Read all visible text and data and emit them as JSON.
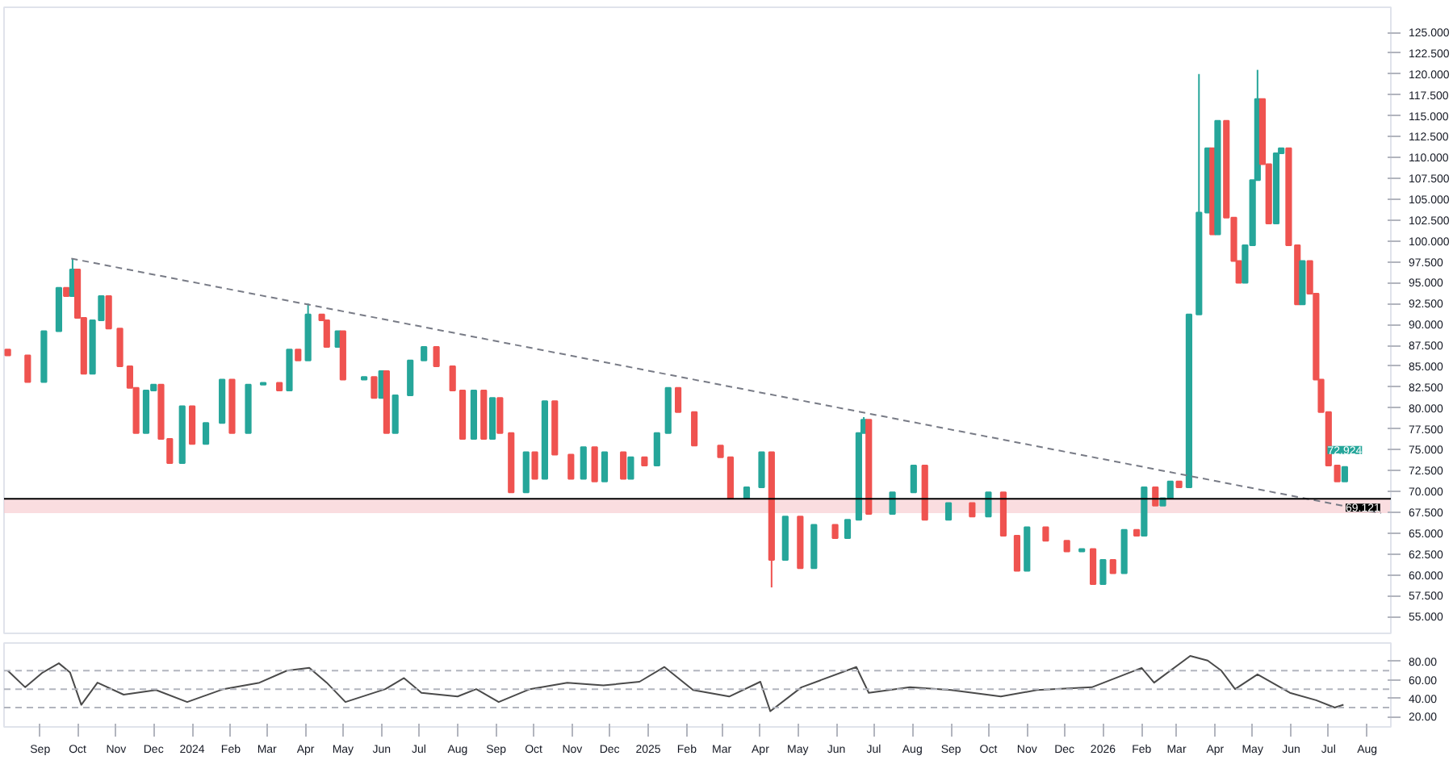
{
  "chart_data": [
    {
      "type": "candlestick",
      "xlim": [
        "2023-08-03",
        "2026-08-20"
      ],
      "ylim": [
        53,
        128
      ],
      "tick_labels": "y",
      "colors": [
        "#ef5350",
        "#ef5350",
        "#26a69a",
        "#26a69a",
        "#ef5350",
        "#26a69a",
        "#ef5350",
        "#ef5350",
        "#26a69a",
        "#26a69a",
        "#ef5350",
        "#ef5350",
        "#ef5350",
        "#ef5350",
        "#26a69a",
        "#26a69a",
        "#ef5350",
        "#ef5350",
        "#26a69a",
        "#ef5350",
        "#26a69a",
        "#26a69a",
        "#ef5350",
        "#26a69a",
        "#26a69a",
        "#ef5350",
        "#26a69a",
        "#ef5350",
        "#26a69a",
        "#ef5350",
        "#ef5350",
        "#26a69a",
        "#ef5350",
        "#26a69a",
        "#ef5350",
        "#26a69a",
        "#ef5350",
        "#26a69a",
        "#26a69a",
        "#26a69a",
        "#ef5350",
        "#ef5350",
        "#ef5350",
        "#26a69a",
        "#ef5350",
        "#26a69a",
        "#ef5350",
        "#ef5350",
        "#26a69a",
        "#ef5350",
        "#26a69a",
        "#ef5350",
        "#ef5350",
        "#26a69a",
        "#ef5350",
        "#26a69a",
        "#ef5350",
        "#26a69a",
        "#ef5350",
        "#26a69a",
        "#26a69a",
        "#ef5350",
        "#ef5350",
        "#ef5350",
        "#ef5350",
        "#26a69a",
        "#26a69a",
        "#ef5350",
        "#26a69a",
        "#ef5350",
        "#26a69a",
        "#ef5350",
        "#26a69a",
        "#26a69a",
        "#26a69a",
        "#ef5350",
        "#26a69a",
        "#26a69a",
        "#ef5350",
        "#26a69a",
        "#ef5350",
        "#26a69a",
        "#ef5350",
        "#ef5350",
        "#26a69a",
        "#ef5350",
        "#ef5350",
        "#26a69a",
        "#ef5350",
        "#26a69a",
        "#ef5350",
        "#26a69a",
        "#ef5350",
        "#26a69a",
        "#ef5350",
        "#26a69a",
        "#26a69a",
        "#ef5350",
        "#26a69a",
        "#26a69a",
        "#26a69a",
        "#ef5350",
        "#26a69a",
        "#ef5350",
        "#ef5350",
        "#ef5350",
        "#26a69a",
        "#26a69a",
        "#26a69a",
        "#ef5350",
        "#ef5350",
        "#26a69a",
        "#26a69a",
        "#ef5350",
        "#ef5350",
        "#26a69a",
        "#ef5350",
        "#ef5350",
        "#ef5350",
        "#ef5350",
        "#ef5350",
        "#26a69a"
      ],
      "yticks": [
        {
          "value": 55,
          "label": "55.000"
        },
        {
          "value": 57.5,
          "label": "57.500"
        },
        {
          "value": 60,
          "label": "60.000"
        },
        {
          "value": 62.5,
          "label": "62.500"
        },
        {
          "value": 65,
          "label": "65.000"
        },
        {
          "value": 67.5,
          "label": "67.500"
        },
        {
          "value": 70,
          "label": "70.000"
        },
        {
          "value": 72.5,
          "label": "72.500"
        },
        {
          "value": 75,
          "label": "75.000"
        },
        {
          "value": 77.5,
          "label": "77.500"
        },
        {
          "value": 80,
          "label": "80.000"
        },
        {
          "value": 82.5,
          "label": "82.500"
        },
        {
          "value": 85,
          "label": "85.000"
        },
        {
          "value": 87.5,
          "label": "87.500"
        },
        {
          "value": 90,
          "label": "90.000"
        },
        {
          "value": 92.5,
          "label": "92.500"
        },
        {
          "value": 95,
          "label": "95.000"
        },
        {
          "value": 97.5,
          "label": "97.500"
        },
        {
          "value": 100,
          "label": "100.000"
        },
        {
          "value": 102.5,
          "label": "102.500"
        },
        {
          "value": 105,
          "label": "105.000"
        },
        {
          "value": 107.5,
          "label": "107.500"
        },
        {
          "value": 110,
          "label": "110.000"
        },
        {
          "value": 112.5,
          "label": "112.500"
        },
        {
          "value": 115,
          "label": "115.000"
        },
        {
          "value": 117.5,
          "label": "117.500"
        },
        {
          "value": 120,
          "label": "120.000"
        },
        {
          "value": 122.5,
          "label": "122.500"
        },
        {
          "value": 125,
          "label": "125.000"
        }
      ],
      "x": [
        "2023-08-06",
        "2023-08-22",
        "2023-09-04",
        "2023-09-16",
        "2023-09-22",
        "2023-09-27",
        "2023-10-01",
        "2023-10-06",
        "2023-10-13",
        "2023-10-20",
        "2023-10-26",
        "2023-11-04",
        "2023-11-12",
        "2023-11-17",
        "2023-11-25",
        "2023-12-01",
        "2023-12-07",
        "2023-12-14",
        "2023-12-24",
        "2024-01-01",
        "2024-01-12",
        "2024-01-25",
        "2024-02-02",
        "2024-02-15",
        "2024-02-27",
        "2024-03-11",
        "2024-03-19",
        "2024-03-26",
        "2024-04-03",
        "2024-04-14",
        "2024-04-18",
        "2024-04-27",
        "2024-05-01",
        "2024-05-18",
        "2024-05-26",
        "2024-06-01",
        "2024-06-05",
        "2024-06-12",
        "2024-06-24",
        "2024-07-05",
        "2024-07-15",
        "2024-07-28",
        "2024-08-05",
        "2024-08-14",
        "2024-08-22",
        "2024-08-29",
        "2024-09-04",
        "2024-09-13",
        "2024-09-25",
        "2024-10-02",
        "2024-10-10",
        "2024-10-18",
        "2024-10-31",
        "2024-11-10",
        "2024-11-19",
        "2024-11-27",
        "2024-12-12",
        "2024-12-18",
        "2024-12-29",
        "2025-01-08",
        "2025-01-17",
        "2025-01-25",
        "2025-02-07",
        "2025-02-28",
        "2025-03-08",
        "2025-03-21",
        "2025-04-02",
        "2025-04-10",
        "2025-04-21",
        "2025-05-03",
        "2025-05-14",
        "2025-05-31",
        "2025-06-10",
        "2025-06-19",
        "2025-06-23",
        "2025-06-27",
        "2025-07-16",
        "2025-08-02",
        "2025-08-11",
        "2025-08-30",
        "2025-09-18",
        "2025-10-01",
        "2025-10-13",
        "2025-10-24",
        "2025-11-01",
        "2025-11-16",
        "2025-12-03",
        "2025-12-15",
        "2025-12-24",
        "2026-01-01",
        "2026-01-09",
        "2026-01-18",
        "2026-01-28",
        "2026-02-03",
        "2026-02-12",
        "2026-02-18",
        "2026-02-24",
        "2026-03-03",
        "2026-03-11",
        "2026-03-19",
        "2026-03-26",
        "2026-03-30",
        "2026-04-03",
        "2026-04-10",
        "2026-04-16",
        "2026-04-20",
        "2026-04-25",
        "2026-05-01",
        "2026-05-05",
        "2026-05-09",
        "2026-05-14",
        "2026-05-20",
        "2026-05-24",
        "2026-05-30",
        "2026-06-06",
        "2026-06-10",
        "2026-06-16",
        "2026-06-21",
        "2026-06-25",
        "2026-07-01",
        "2026-07-08",
        "2026-07-14"
      ],
      "ohlc": [
        [
          87.0,
          87.0,
          86.3,
          86.3
        ],
        [
          86.3,
          86.3,
          83.1,
          83.1
        ],
        [
          83.1,
          89.2,
          83.1,
          89.2
        ],
        [
          89.2,
          94.4,
          89.2,
          94.4
        ],
        [
          94.4,
          94.4,
          93.4,
          93.4
        ],
        [
          93.4,
          97.9,
          93.4,
          96.6
        ],
        [
          96.6,
          96.6,
          90.8,
          90.8
        ],
        [
          90.8,
          90.8,
          84.1,
          84.1
        ],
        [
          84.1,
          90.5,
          84.1,
          90.5
        ],
        [
          90.5,
          93.4,
          90.5,
          93.4
        ],
        [
          93.4,
          93.4,
          89.5,
          89.5
        ],
        [
          89.5,
          89.5,
          85.0,
          85.0
        ],
        [
          85.0,
          85.0,
          82.4,
          82.4
        ],
        [
          82.4,
          82.4,
          77.0,
          77.0
        ],
        [
          77.0,
          82.1,
          77.0,
          82.1
        ],
        [
          82.1,
          82.8,
          82.1,
          82.8
        ],
        [
          82.8,
          82.8,
          76.3,
          76.3
        ],
        [
          76.3,
          76.3,
          73.4,
          73.4
        ],
        [
          73.4,
          80.2,
          73.4,
          80.2
        ],
        [
          80.2,
          80.2,
          75.7,
          75.7
        ],
        [
          75.7,
          78.2,
          75.7,
          78.2
        ],
        [
          78.2,
          83.4,
          78.2,
          83.4
        ],
        [
          83.4,
          83.4,
          77.0,
          77.0
        ],
        [
          77.0,
          82.8,
          77.0,
          82.8
        ],
        [
          82.8,
          83.0,
          82.8,
          83.0
        ],
        [
          83.0,
          83.0,
          82.1,
          82.1
        ],
        [
          82.1,
          87.0,
          82.1,
          87.0
        ],
        [
          87.0,
          87.0,
          85.7,
          85.7
        ],
        [
          85.7,
          92.5,
          85.7,
          91.2
        ],
        [
          91.2,
          91.2,
          90.5,
          90.5
        ],
        [
          90.5,
          90.5,
          87.3,
          87.3
        ],
        [
          87.3,
          89.2,
          87.3,
          89.2
        ],
        [
          89.2,
          89.2,
          83.4,
          83.4
        ],
        [
          83.4,
          83.7,
          83.4,
          83.7
        ],
        [
          83.7,
          83.7,
          81.2,
          81.2
        ],
        [
          81.2,
          84.4,
          81.2,
          84.4
        ],
        [
          84.4,
          84.4,
          77.0,
          77.0
        ],
        [
          77.0,
          81.5,
          77.0,
          81.5
        ],
        [
          81.5,
          85.7,
          81.5,
          85.7
        ],
        [
          85.7,
          87.3,
          85.7,
          87.3
        ],
        [
          87.3,
          87.3,
          85.0,
          85.0
        ],
        [
          85.0,
          85.0,
          82.1,
          82.1
        ],
        [
          82.1,
          82.1,
          76.3,
          76.3
        ],
        [
          76.3,
          82.1,
          76.3,
          82.1
        ],
        [
          82.1,
          82.1,
          76.3,
          76.3
        ],
        [
          76.3,
          81.2,
          76.3,
          81.2
        ],
        [
          81.2,
          81.2,
          77.0,
          77.0
        ],
        [
          77.0,
          77.0,
          69.9,
          69.9
        ],
        [
          69.9,
          74.7,
          69.9,
          74.7
        ],
        [
          74.7,
          74.7,
          71.5,
          71.5
        ],
        [
          71.5,
          80.8,
          71.5,
          80.8
        ],
        [
          80.8,
          80.8,
          74.4,
          74.4
        ],
        [
          74.4,
          74.4,
          71.5,
          71.5
        ],
        [
          71.5,
          75.3,
          71.5,
          75.3
        ],
        [
          75.3,
          75.3,
          71.2,
          71.2
        ],
        [
          71.2,
          74.7,
          71.2,
          74.7
        ],
        [
          74.7,
          74.7,
          71.5,
          71.5
        ],
        [
          71.5,
          74.1,
          71.5,
          74.1
        ],
        [
          74.1,
          74.1,
          73.1,
          73.1
        ],
        [
          73.1,
          77.0,
          73.1,
          77.0
        ],
        [
          77.0,
          82.4,
          77.0,
          82.4
        ],
        [
          82.4,
          82.4,
          79.5,
          79.5
        ],
        [
          79.5,
          79.5,
          75.5,
          75.5
        ],
        [
          75.5,
          75.5,
          74.1,
          74.1
        ],
        [
          74.1,
          74.1,
          69.2,
          69.2
        ],
        [
          69.2,
          70.5,
          69.2,
          70.5
        ],
        [
          70.5,
          74.7,
          70.5,
          74.7
        ],
        [
          74.7,
          74.7,
          58.5,
          61.8
        ],
        [
          61.8,
          67.0,
          61.8,
          67.0
        ],
        [
          67.0,
          67.0,
          60.8,
          60.8
        ],
        [
          60.8,
          66.0,
          60.8,
          66.0
        ],
        [
          66.0,
          66.0,
          64.4,
          64.4
        ],
        [
          64.4,
          66.6,
          64.4,
          66.6
        ],
        [
          66.6,
          77.0,
          66.6,
          77.0
        ],
        [
          77.0,
          78.9,
          77.0,
          78.6
        ],
        [
          78.6,
          78.6,
          67.3,
          67.3
        ],
        [
          67.3,
          69.9,
          67.3,
          69.9
        ],
        [
          69.9,
          73.1,
          69.9,
          73.1
        ],
        [
          73.1,
          73.1,
          66.6,
          66.6
        ],
        [
          66.6,
          68.6,
          66.6,
          68.6
        ],
        [
          68.6,
          68.6,
          67.0,
          67.0
        ],
        [
          67.0,
          69.9,
          67.0,
          69.9
        ],
        [
          69.9,
          69.9,
          64.7,
          64.7
        ],
        [
          64.7,
          64.7,
          60.5,
          60.5
        ],
        [
          60.5,
          65.7,
          60.5,
          65.7
        ],
        [
          65.7,
          65.7,
          64.1,
          64.1
        ],
        [
          64.1,
          64.1,
          62.8,
          62.8
        ],
        [
          62.8,
          63.1,
          62.8,
          63.1
        ],
        [
          63.1,
          63.1,
          58.9,
          58.9
        ],
        [
          58.9,
          61.8,
          58.9,
          61.8
        ],
        [
          61.8,
          61.8,
          60.2,
          60.2
        ],
        [
          60.2,
          65.4,
          60.2,
          65.4
        ],
        [
          65.4,
          65.4,
          64.7,
          64.7
        ],
        [
          64.7,
          70.5,
          64.7,
          70.5
        ],
        [
          70.5,
          70.5,
          68.3,
          68.3
        ],
        [
          68.3,
          69.2,
          68.3,
          69.2
        ],
        [
          69.2,
          71.2,
          69.2,
          71.2
        ],
        [
          71.2,
          71.2,
          70.5,
          70.5
        ],
        [
          70.5,
          91.2,
          70.5,
          91.2
        ],
        [
          91.2,
          120.0,
          91.2,
          103.4
        ],
        [
          103.4,
          111.1,
          103.4,
          111.1
        ],
        [
          111.1,
          111.1,
          100.8,
          100.8
        ],
        [
          100.8,
          114.4,
          100.8,
          114.4
        ],
        [
          114.4,
          114.4,
          102.8,
          102.8
        ],
        [
          102.8,
          102.8,
          97.6,
          97.6
        ],
        [
          97.6,
          97.6,
          95.0,
          95.0
        ],
        [
          95.0,
          99.5,
          95.0,
          99.5
        ],
        [
          99.5,
          107.3,
          99.5,
          107.3
        ],
        [
          107.3,
          120.5,
          107.3,
          117.0
        ],
        [
          117.0,
          117.0,
          109.2,
          109.2
        ],
        [
          109.2,
          109.2,
          102.1,
          102.1
        ],
        [
          102.1,
          110.5,
          102.1,
          110.5
        ],
        [
          110.5,
          111.1,
          110.5,
          111.1
        ],
        [
          111.1,
          111.1,
          99.5,
          99.5
        ],
        [
          99.5,
          99.5,
          92.4,
          92.4
        ],
        [
          92.4,
          97.6,
          92.4,
          97.6
        ],
        [
          97.6,
          97.6,
          93.7,
          93.7
        ],
        [
          93.7,
          93.7,
          83.4,
          83.4
        ],
        [
          83.4,
          83.4,
          79.5,
          79.5
        ],
        [
          79.5,
          79.5,
          73.1,
          73.1
        ],
        [
          73.1,
          73.1,
          71.2,
          71.2
        ],
        [
          71.2,
          72.924,
          71.2,
          72.924
        ]
      ],
      "series": [
        {
          "type": "line",
          "x": [
            "2023-09-26",
            "2026-08-12"
          ],
          "values": [
            97.9,
            67.4
          ],
          "color": "#787b86",
          "line_style": "dashed"
        }
      ],
      "ref_lines": [
        {
          "axis": "y",
          "value": 69.121,
          "label": "69.121",
          "color": "#000000"
        }
      ],
      "bands": [
        {
          "axis": "y",
          "from": 67.4,
          "to": 69.121,
          "color": "#f7c6cc"
        }
      ],
      "annotations": [
        {
          "text": "72.924",
          "x": "2026-07-14",
          "y": 72.924
        }
      ]
    },
    {
      "type": "line",
      "xlim": [
        "2023-08-03",
        "2026-08-20"
      ],
      "ylim": [
        9,
        100
      ],
      "yticks": [
        {
          "value": 20,
          "label": "20.00"
        },
        {
          "value": 40,
          "label": "40.00"
        },
        {
          "value": 60,
          "label": "60.00"
        },
        {
          "value": 80,
          "label": "80.00"
        }
      ],
      "xticks": [
        {
          "value": "2023-09-01",
          "label": "Sep"
        },
        {
          "value": "2023-10-01",
          "label": "Oct"
        },
        {
          "value": "2023-11-01",
          "label": "Nov"
        },
        {
          "value": "2023-12-01",
          "label": "Dec"
        },
        {
          "value": "2024-01-01",
          "label": "2024"
        },
        {
          "value": "2024-02-01",
          "label": "Feb"
        },
        {
          "value": "2024-03-01",
          "label": "Mar"
        },
        {
          "value": "2024-04-01",
          "label": "Apr"
        },
        {
          "value": "2024-05-01",
          "label": "May"
        },
        {
          "value": "2024-06-01",
          "label": "Jun"
        },
        {
          "value": "2024-07-01",
          "label": "Jul"
        },
        {
          "value": "2024-08-01",
          "label": "Aug"
        },
        {
          "value": "2024-09-01",
          "label": "Sep"
        },
        {
          "value": "2024-10-01",
          "label": "Oct"
        },
        {
          "value": "2024-11-01",
          "label": "Nov"
        },
        {
          "value": "2024-12-01",
          "label": "Dec"
        },
        {
          "value": "2025-01-01",
          "label": "2025"
        },
        {
          "value": "2025-02-01",
          "label": "Feb"
        },
        {
          "value": "2025-03-01",
          "label": "Mar"
        },
        {
          "value": "2025-04-01",
          "label": "Apr"
        },
        {
          "value": "2025-05-01",
          "label": "May"
        },
        {
          "value": "2025-06-01",
          "label": "Jun"
        },
        {
          "value": "2025-07-01",
          "label": "Jul"
        },
        {
          "value": "2025-08-01",
          "label": "Aug"
        },
        {
          "value": "2025-09-01",
          "label": "Sep"
        },
        {
          "value": "2025-10-01",
          "label": "Oct"
        },
        {
          "value": "2025-11-01",
          "label": "Nov"
        },
        {
          "value": "2025-12-01",
          "label": "Dec"
        },
        {
          "value": "2026-01-01",
          "label": "2026"
        },
        {
          "value": "2026-02-01",
          "label": "Feb"
        },
        {
          "value": "2026-03-01",
          "label": "Mar"
        },
        {
          "value": "2026-04-01",
          "label": "Apr"
        },
        {
          "value": "2026-05-01",
          "label": "May"
        },
        {
          "value": "2026-06-01",
          "label": "Jun"
        },
        {
          "value": "2026-07-01",
          "label": "Jul"
        },
        {
          "value": "2026-08-01",
          "label": "Aug"
        }
      ],
      "series": [
        {
          "color": "#4a4a4a",
          "x": [
            "2023-08-06",
            "2023-08-20",
            "2023-09-03",
            "2023-09-16",
            "2023-09-25",
            "2023-10-04",
            "2023-10-17",
            "2023-11-07",
            "2023-12-03",
            "2023-12-28",
            "2024-01-26",
            "2024-02-24",
            "2024-03-17",
            "2024-04-04",
            "2024-04-18",
            "2024-05-03",
            "2024-06-04",
            "2024-06-19",
            "2024-07-03",
            "2024-08-01",
            "2024-08-16",
            "2024-09-03",
            "2024-09-28",
            "2024-10-28",
            "2024-11-26",
            "2024-12-25",
            "2025-01-14",
            "2025-02-06",
            "2025-03-07",
            "2025-04-01",
            "2025-04-09",
            "2025-05-04",
            "2025-06-17",
            "2025-06-27",
            "2025-07-30",
            "2025-09-01",
            "2025-10-11",
            "2025-11-09",
            "2025-12-23",
            "2026-02-01",
            "2026-02-11",
            "2026-03-12",
            "2026-03-26",
            "2026-04-06",
            "2026-04-17",
            "2026-05-05",
            "2026-05-31",
            "2026-06-21",
            "2026-07-06",
            "2026-07-13"
          ],
          "values": [
            70,
            52,
            68,
            78,
            68,
            33,
            57,
            44,
            49,
            36,
            50,
            57,
            70,
            73,
            57,
            36,
            50,
            62,
            46,
            42,
            50,
            36,
            50,
            57,
            54,
            58,
            74,
            49,
            42,
            58,
            26,
            52,
            74,
            46,
            52,
            49,
            42,
            49,
            52,
            73,
            57,
            86,
            81,
            70,
            50,
            66,
            46,
            38,
            30,
            33
          ]
        }
      ],
      "ref_lines": [
        {
          "axis": "y",
          "value": 70,
          "color": "#b2b5be",
          "line_style": "dashed"
        },
        {
          "axis": "y",
          "value": 50,
          "color": "#b2b5be",
          "line_style": "dashed"
        },
        {
          "axis": "y",
          "value": 30,
          "color": "#b2b5be",
          "line_style": "dashed"
        }
      ]
    }
  ]
}
